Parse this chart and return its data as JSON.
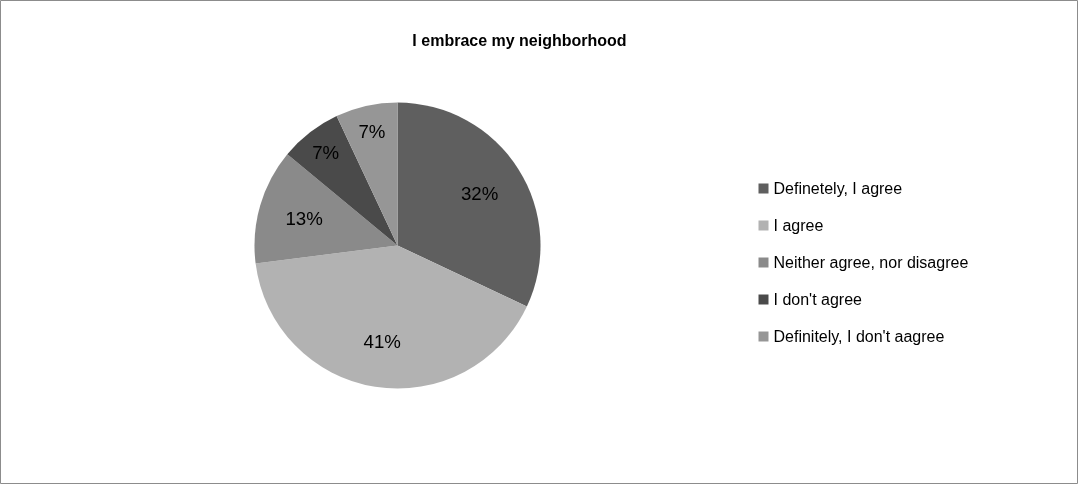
{
  "chart_data": {
    "type": "pie",
    "title": "I embrace my neighborhood",
    "categories": [
      "Definetely, I agree",
      "I agree",
      "Neither agree, nor disagree",
      "I don't agree",
      "Definitely, I don't aagree"
    ],
    "values": [
      32,
      41,
      13,
      7,
      7
    ],
    "colors": [
      "#5f5f5f",
      "#b2b2b2",
      "#8a8a8a",
      "#4a4a4a",
      "#969696"
    ],
    "value_labels": [
      "32%",
      "41%",
      "13%",
      "7%",
      "7%"
    ],
    "legend": "right"
  }
}
